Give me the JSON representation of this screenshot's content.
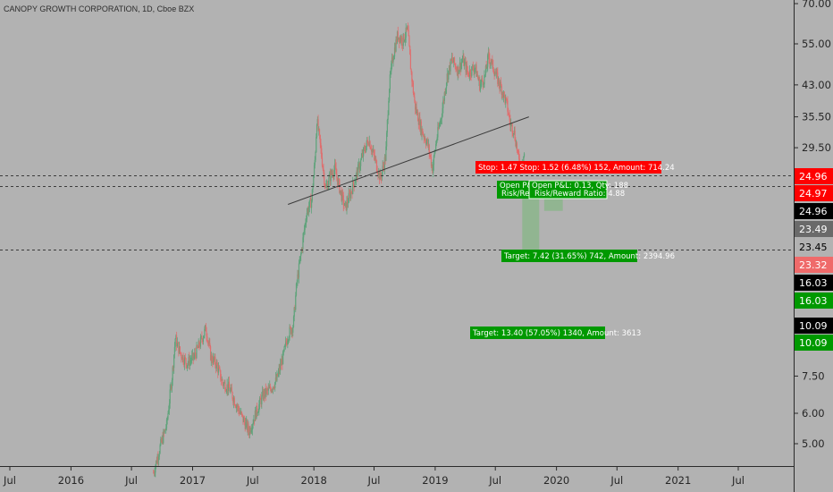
{
  "title": "CANOPY GROWTH CORPORATION, 1D, Cboe BZX",
  "colors": {
    "background": "#b2b2b2",
    "up_candle": "#5fa37b",
    "down_candle": "#df6e6e",
    "stop_red": "#ff0000",
    "target_green": "#009900",
    "zone_green": "#8fb58f",
    "axis_text": "#262626",
    "trendline": "#3a3a3a"
  },
  "chart_data": {
    "type": "candlestick",
    "y_scale": "log",
    "ylim": [
      4.2,
      70
    ],
    "y_ticks": [
      "70.00",
      "55.00",
      "43.00",
      "35.50",
      "29.50",
      "7.50",
      "6.00",
      "5.00"
    ],
    "x_ticks": [
      "Jul",
      "2016",
      "Jul",
      "2017",
      "Jul",
      "2018",
      "Jul",
      "2019",
      "Jul",
      "2020",
      "Jul",
      "2021",
      "Jul"
    ],
    "x_tick_dates": [
      "2015-07-01",
      "2016-01-01",
      "2016-07-01",
      "2017-01-01",
      "2017-07-01",
      "2018-01-01",
      "2018-07-01",
      "2019-01-01",
      "2019-07-01",
      "2020-01-01",
      "2020-07-01",
      "2021-01-01",
      "2021-07-01"
    ],
    "price_path": [
      {
        "date": "2016-09-05",
        "price": 4.2
      },
      {
        "date": "2016-09-25",
        "price": 4.9
      },
      {
        "date": "2016-10-15",
        "price": 5.6
      },
      {
        "date": "2016-11-01",
        "price": 7.6
      },
      {
        "date": "2016-11-10",
        "price": 9.4
      },
      {
        "date": "2016-11-25",
        "price": 8.6
      },
      {
        "date": "2016-12-15",
        "price": 8.1
      },
      {
        "date": "2017-01-05",
        "price": 8.4
      },
      {
        "date": "2017-01-25",
        "price": 9.2
      },
      {
        "date": "2017-02-10",
        "price": 10.0
      },
      {
        "date": "2017-02-25",
        "price": 8.4
      },
      {
        "date": "2017-03-15",
        "price": 8.0
      },
      {
        "date": "2017-04-01",
        "price": 7.2
      },
      {
        "date": "2017-04-20",
        "price": 7.0
      },
      {
        "date": "2017-05-10",
        "price": 6.4
      },
      {
        "date": "2017-06-01",
        "price": 5.8
      },
      {
        "date": "2017-06-20",
        "price": 5.4
      },
      {
        "date": "2017-07-10",
        "price": 6.0
      },
      {
        "date": "2017-08-01",
        "price": 6.7
      },
      {
        "date": "2017-08-20",
        "price": 6.9
      },
      {
        "date": "2017-09-10",
        "price": 7.3
      },
      {
        "date": "2017-09-30",
        "price": 8.4
      },
      {
        "date": "2017-10-15",
        "price": 9.6
      },
      {
        "date": "2017-10-31",
        "price": 10.2
      },
      {
        "date": "2017-11-10",
        "price": 13.0
      },
      {
        "date": "2017-11-25",
        "price": 16.0
      },
      {
        "date": "2017-12-10",
        "price": 20.0
      },
      {
        "date": "2017-12-25",
        "price": 21.5
      },
      {
        "date": "2018-01-05",
        "price": 28.0
      },
      {
        "date": "2018-01-10",
        "price": 35.0
      },
      {
        "date": "2018-01-20",
        "price": 30.0
      },
      {
        "date": "2018-02-05",
        "price": 23.0
      },
      {
        "date": "2018-02-20",
        "price": 25.0
      },
      {
        "date": "2018-03-05",
        "price": 26.0
      },
      {
        "date": "2018-03-20",
        "price": 23.0
      },
      {
        "date": "2018-04-05",
        "price": 20.5
      },
      {
        "date": "2018-04-25",
        "price": 23.0
      },
      {
        "date": "2018-05-15",
        "price": 26.0
      },
      {
        "date": "2018-06-01",
        "price": 29.0
      },
      {
        "date": "2018-06-15",
        "price": 31.0
      },
      {
        "date": "2018-07-01",
        "price": 28.0
      },
      {
        "date": "2018-07-20",
        "price": 24.5
      },
      {
        "date": "2018-08-05",
        "price": 28.0
      },
      {
        "date": "2018-08-15",
        "price": 42.0
      },
      {
        "date": "2018-08-25",
        "price": 50.0
      },
      {
        "date": "2018-09-10",
        "price": 58.0
      },
      {
        "date": "2018-09-25",
        "price": 56.0
      },
      {
        "date": "2018-10-10",
        "price": 60.0
      },
      {
        "date": "2018-10-20",
        "price": 47.0
      },
      {
        "date": "2018-11-01",
        "price": 38.0
      },
      {
        "date": "2018-11-20",
        "price": 33.0
      },
      {
        "date": "2018-12-10",
        "price": 30.0
      },
      {
        "date": "2018-12-24",
        "price": 26.0
      },
      {
        "date": "2019-01-05",
        "price": 31.0
      },
      {
        "date": "2019-01-20",
        "price": 36.0
      },
      {
        "date": "2019-02-05",
        "price": 45.0
      },
      {
        "date": "2019-02-20",
        "price": 50.0
      },
      {
        "date": "2019-03-10",
        "price": 47.0
      },
      {
        "date": "2019-03-25",
        "price": 50.0
      },
      {
        "date": "2019-04-10",
        "price": 46.0
      },
      {
        "date": "2019-04-30",
        "price": 48.0
      },
      {
        "date": "2019-05-15",
        "price": 43.0
      },
      {
        "date": "2019-05-30",
        "price": 45.0
      },
      {
        "date": "2019-06-10",
        "price": 51.0
      },
      {
        "date": "2019-06-20",
        "price": 49.0
      },
      {
        "date": "2019-07-05",
        "price": 45.0
      },
      {
        "date": "2019-07-20",
        "price": 42.0
      },
      {
        "date": "2019-08-05",
        "price": 38.0
      },
      {
        "date": "2019-08-15",
        "price": 34.0
      },
      {
        "date": "2019-08-25",
        "price": 33.0
      },
      {
        "date": "2019-09-05",
        "price": 29.0
      },
      {
        "date": "2019-09-12",
        "price": 26.5
      },
      {
        "date": "2019-09-18",
        "price": 27.0
      },
      {
        "date": "2019-09-26",
        "price": 28.5
      }
    ],
    "trendline": [
      {
        "date": "2017-10-15",
        "price": 21.0
      },
      {
        "date": "2019-10-10",
        "price": 35.5
      }
    ],
    "horizontal_levels": [
      24.96,
      23.45,
      16.03
    ],
    "zones": [
      {
        "name": "trade-1-target-zone",
        "start": "2019-09-20",
        "end": "2019-11-10",
        "top": 23.49,
        "bottom": 16.03
      },
      {
        "name": "trade-2-target-zone",
        "start": "2019-11-25",
        "end": "2020-01-20",
        "top": 23.49,
        "bottom": 20.2
      }
    ],
    "annotations": {
      "stop": "Stop: 1.47 Stop: 1.52 (6.48%) 152, Amount: 714.24",
      "open_1": [
        "Open P&L",
        "Risk/Rewar"
      ],
      "open_2": [
        "Open P&L: 0.13, Qty: 188",
        "Risk/Reward Ratio: 4.88"
      ],
      "target_1": "Target: 7.42 (31.65%) 742, Amount: 2394.96",
      "target_2": "Target: 13.40 (57.05%) 1340, Amount: 3613"
    },
    "price_tags": [
      {
        "text": "24.96",
        "bg": "#ff0000",
        "fg": "#ffffff"
      },
      {
        "text": "24.97",
        "bg": "#ff0000",
        "fg": "#ffffff"
      },
      {
        "text": "24.96",
        "bg": "#000000",
        "fg": "#ffffff"
      },
      {
        "text": "23.49",
        "bg": "#6a6a6a",
        "fg": "#ffffff"
      },
      {
        "text": "23.45",
        "bg": "#b2b2b2",
        "fg": "#000000"
      },
      {
        "text": "23.32",
        "bg": "#ef6a6a",
        "fg": "#ffffff"
      },
      {
        "text": "16.03",
        "bg": "#000000",
        "fg": "#ffffff"
      },
      {
        "text": "16.03",
        "bg": "#009900",
        "fg": "#ffffff"
      },
      {
        "text": "10.09",
        "bg": "#000000",
        "fg": "#ffffff"
      },
      {
        "text": "10.09",
        "bg": "#009900",
        "fg": "#ffffff"
      }
    ]
  }
}
